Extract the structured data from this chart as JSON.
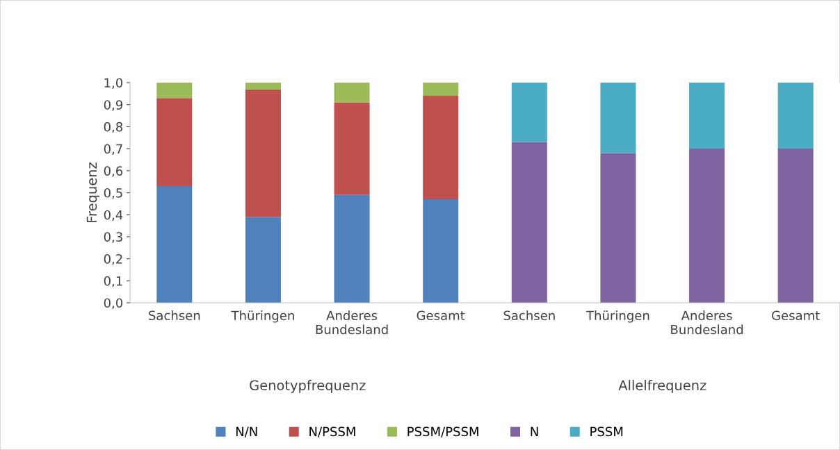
{
  "chart_data": {
    "type": "bar",
    "stacked": true,
    "ylabel": "Frequenz",
    "categories": [
      "Sachsen",
      "Thüringen",
      "Anderes\nBundesland",
      "Gesamt",
      "Sachsen",
      "Thüringen",
      "Anderes\nBundesland",
      "Gesamt"
    ],
    "series": [
      {
        "name": "N/N",
        "color": "#4f81bd",
        "values": [
          0.53,
          0.39,
          0.49,
          0.47,
          null,
          null,
          null,
          null
        ]
      },
      {
        "name": "N/PSSM",
        "color": "#c0504d",
        "values": [
          0.4,
          0.58,
          0.42,
          0.47,
          null,
          null,
          null,
          null
        ]
      },
      {
        "name": "PSSM/PSSM",
        "color": "#9bbb59",
        "values": [
          0.07,
          0.03,
          0.09,
          0.06,
          null,
          null,
          null,
          null
        ]
      },
      {
        "name": "N",
        "color": "#8064a2",
        "values": [
          null,
          null,
          null,
          null,
          0.73,
          0.68,
          0.7,
          0.7
        ]
      },
      {
        "name": "PSSM",
        "color": "#4bacc6",
        "values": [
          null,
          null,
          null,
          null,
          0.27,
          0.32,
          0.3,
          0.3
        ]
      }
    ],
    "ylim": [
      0,
      1
    ],
    "yticks": [
      {
        "value": 0,
        "label": "0,0"
      },
      {
        "value": 0.1,
        "label": "0,1"
      },
      {
        "value": 0.2,
        "label": "0,2"
      },
      {
        "value": 0.3,
        "label": "0,3"
      },
      {
        "value": 0.4,
        "label": "0,4"
      },
      {
        "value": 0.5,
        "label": "0,5"
      },
      {
        "value": 0.6,
        "label": "0,6"
      },
      {
        "value": 0.7,
        "label": "0,7"
      },
      {
        "value": 0.8,
        "label": "0,8"
      },
      {
        "value": 0.9,
        "label": "0,9"
      },
      {
        "value": 1.0,
        "label": "1,0"
      }
    ],
    "annotations": [
      "Genotypfrequenz",
      "Allelfrequenz"
    ],
    "grid": false,
    "legend": "bottom"
  }
}
